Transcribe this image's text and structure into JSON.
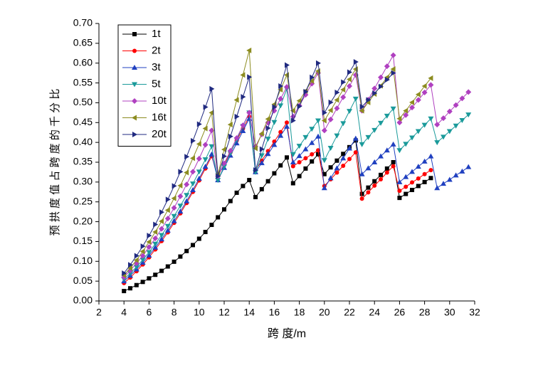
{
  "chart_data": {
    "type": "line",
    "xlabel": "跨 度/m",
    "ylabel": "预 拱 度 值 占 跨 度 的 千 分 比",
    "x": [
      4,
      4.5,
      5,
      5.5,
      6,
      6.5,
      7,
      7.5,
      8,
      8.5,
      9,
      9.5,
      10,
      10.5,
      11,
      11.5,
      12,
      12.5,
      13,
      13.5,
      14,
      14.5,
      15,
      15.5,
      16,
      16.5,
      17,
      17.5,
      18,
      18.5,
      19,
      19.5,
      20,
      20.5,
      21,
      21.5,
      22,
      22.5,
      23,
      23.5,
      24,
      24.5,
      25,
      25.5,
      26,
      26.5,
      27,
      27.5,
      28,
      28.5,
      29,
      29.5,
      30,
      30.5,
      31,
      31.5
    ],
    "xlim": [
      2,
      32
    ],
    "xticks": [
      2,
      4,
      6,
      8,
      10,
      12,
      14,
      16,
      18,
      20,
      22,
      24,
      26,
      28,
      30,
      32
    ],
    "ylim": [
      0,
      0.7
    ],
    "yticks": [
      {
        "value": 0,
        "label": "0.00"
      },
      {
        "value": 0.05,
        "label": "0.05"
      },
      {
        "value": 0.1,
        "label": "0.10"
      },
      {
        "value": 0.15,
        "label": "0.15"
      },
      {
        "value": 0.2,
        "label": "0.20"
      },
      {
        "value": 0.25,
        "label": "0.25"
      },
      {
        "value": 0.3,
        "label": "0.30"
      },
      {
        "value": 0.35,
        "label": "0.35"
      },
      {
        "value": 0.4,
        "label": "0.40"
      },
      {
        "value": 0.45,
        "label": "0.45"
      },
      {
        "value": 0.5,
        "label": "0.50"
      },
      {
        "value": 0.55,
        "label": "0.55"
      },
      {
        "value": 0.6,
        "label": "0.60"
      },
      {
        "value": 0.65,
        "label": "0.65"
      },
      {
        "value": 0.7,
        "label": "0.70"
      }
    ],
    "legend": "upper left",
    "series": [
      {
        "name": "1t",
        "color": "#000000",
        "marker": "square",
        "values": [
          0.025,
          0.032,
          0.04,
          0.048,
          0.057,
          0.066,
          0.076,
          0.087,
          0.099,
          0.112,
          0.126,
          0.141,
          0.157,
          0.174,
          0.192,
          0.211,
          0.231,
          0.252,
          0.273,
          0.29,
          0.305,
          0.262,
          0.282,
          0.302,
          0.322,
          0.342,
          0.362,
          0.297,
          0.315,
          0.334,
          0.352,
          0.37,
          0.32,
          0.337,
          0.354,
          0.371,
          0.388,
          0.405,
          0.27,
          0.286,
          0.302,
          0.318,
          0.334,
          0.35,
          0.26,
          0.27,
          0.28,
          0.29,
          0.3,
          0.31,
          null,
          null,
          null,
          null,
          null,
          null
        ]
      },
      {
        "name": "2t",
        "color": "#ff0000",
        "marker": "circle",
        "values": [
          0.045,
          0.059,
          0.075,
          0.092,
          0.11,
          0.13,
          0.151,
          0.173,
          0.197,
          0.221,
          0.247,
          0.275,
          0.304,
          0.334,
          0.365,
          0.315,
          0.345,
          0.375,
          0.405,
          0.435,
          0.465,
          0.33,
          0.354,
          0.378,
          0.402,
          0.426,
          0.45,
          0.34,
          0.35,
          0.36,
          0.37,
          0.38,
          0.29,
          0.307,
          0.324,
          0.341,
          0.358,
          0.375,
          0.258,
          0.274,
          0.291,
          0.307,
          0.324,
          0.34,
          0.278,
          0.288,
          0.299,
          0.309,
          0.32,
          0.33,
          null,
          null,
          null,
          null,
          null,
          null
        ]
      },
      {
        "name": "3t",
        "color": "#2040c0",
        "marker": "triangle-up",
        "values": [
          0.05,
          0.064,
          0.08,
          0.097,
          0.115,
          0.135,
          0.156,
          0.178,
          0.202,
          0.226,
          0.252,
          0.28,
          0.309,
          0.339,
          0.37,
          0.305,
          0.336,
          0.367,
          0.398,
          0.429,
          0.46,
          0.325,
          0.348,
          0.371,
          0.394,
          0.417,
          0.44,
          0.35,
          0.366,
          0.383,
          0.399,
          0.415,
          0.285,
          0.31,
          0.335,
          0.36,
          0.385,
          0.41,
          0.32,
          0.335,
          0.35,
          0.365,
          0.38,
          0.395,
          0.3,
          0.313,
          0.326,
          0.339,
          0.352,
          0.365,
          0.285,
          0.296,
          0.306,
          0.317,
          0.327,
          0.338
        ]
      },
      {
        "name": "5t",
        "color": "#1a9a9a",
        "marker": "triangle-down",
        "values": [
          0.055,
          0.07,
          0.086,
          0.104,
          0.123,
          0.144,
          0.166,
          0.189,
          0.214,
          0.24,
          0.267,
          0.296,
          0.326,
          0.357,
          0.39,
          0.305,
          0.339,
          0.373,
          0.407,
          0.441,
          0.475,
          0.325,
          0.367,
          0.409,
          0.451,
          0.493,
          0.535,
          0.37,
          0.391,
          0.413,
          0.434,
          0.455,
          0.355,
          0.386,
          0.417,
          0.448,
          0.479,
          0.51,
          0.395,
          0.413,
          0.431,
          0.449,
          0.467,
          0.485,
          0.38,
          0.396,
          0.412,
          0.428,
          0.444,
          0.46,
          0.4,
          0.414,
          0.428,
          0.442,
          0.456,
          0.47
        ]
      },
      {
        "name": "10t",
        "color": "#b040c0",
        "marker": "diamond",
        "values": [
          0.06,
          0.077,
          0.095,
          0.114,
          0.136,
          0.158,
          0.182,
          0.208,
          0.235,
          0.264,
          0.294,
          0.326,
          0.359,
          0.394,
          0.43,
          0.315,
          0.347,
          0.379,
          0.411,
          0.443,
          0.475,
          0.39,
          0.42,
          0.45,
          0.48,
          0.51,
          0.54,
          0.465,
          0.493,
          0.52,
          0.548,
          0.575,
          0.43,
          0.458,
          0.486,
          0.514,
          0.542,
          0.57,
          0.48,
          0.508,
          0.536,
          0.564,
          0.592,
          0.62,
          0.45,
          0.469,
          0.488,
          0.507,
          0.526,
          0.545,
          0.445,
          0.461,
          0.478,
          0.494,
          0.511,
          0.527
        ]
      },
      {
        "name": "16t",
        "color": "#8c8c20",
        "marker": "triangle-left",
        "values": [
          0.065,
          0.083,
          0.103,
          0.125,
          0.149,
          0.174,
          0.201,
          0.229,
          0.259,
          0.291,
          0.324,
          0.36,
          0.396,
          0.435,
          0.475,
          0.32,
          0.382,
          0.445,
          0.507,
          0.57,
          0.632,
          0.385,
          0.422,
          0.459,
          0.496,
          0.533,
          0.57,
          0.48,
          0.505,
          0.53,
          0.555,
          0.58,
          0.455,
          0.481,
          0.507,
          0.533,
          0.559,
          0.585,
          0.48,
          0.501,
          0.522,
          0.543,
          0.564,
          0.585,
          0.46,
          0.48,
          0.501,
          0.521,
          0.542,
          0.562,
          null,
          null,
          null,
          null,
          null,
          null
        ]
      },
      {
        "name": "20t",
        "color": "#202a80",
        "marker": "triangle-right",
        "values": [
          0.07,
          0.091,
          0.114,
          0.138,
          0.165,
          0.193,
          0.224,
          0.256,
          0.29,
          0.326,
          0.364,
          0.404,
          0.446,
          0.489,
          0.535,
          0.315,
          0.365,
          0.415,
          0.465,
          0.515,
          0.565,
          0.33,
          0.383,
          0.436,
          0.489,
          0.542,
          0.595,
          0.455,
          0.491,
          0.528,
          0.564,
          0.6,
          0.475,
          0.501,
          0.526,
          0.552,
          0.577,
          0.603,
          0.49,
          0.507,
          0.524,
          0.541,
          0.558,
          0.575,
          null,
          null,
          null,
          null,
          null,
          null,
          null,
          null,
          null,
          null,
          null,
          null
        ]
      }
    ]
  }
}
